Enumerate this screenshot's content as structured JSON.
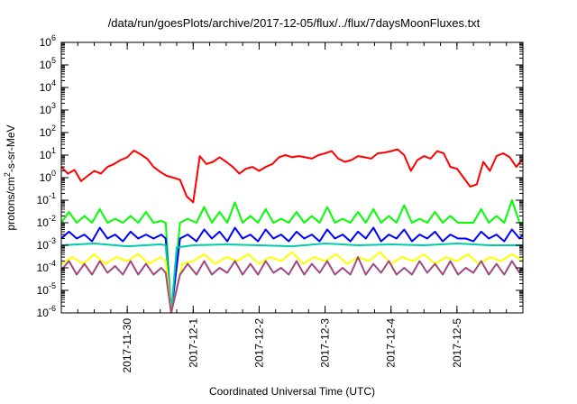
{
  "chart_data": {
    "type": "line",
    "title": "/data/run/goesPlots/archive/2017-12-05/flux/../flux/7daysMoonFluxes.txt",
    "xlabel": "Coordinated Universal Time (UTC)",
    "ylabel": "protons/cm²-s-sr-MeV",
    "yscale": "log",
    "ylim": [
      1e-06,
      1000000.0
    ],
    "ytick_exponents": [
      "-6",
      "-5",
      "-4",
      "-3",
      "-2",
      "-1",
      "0",
      "1",
      "2",
      "3",
      "4",
      "5",
      "6"
    ],
    "ytick_base": "10",
    "xlim": [
      "2017-11-29 00:00",
      "2017-12-06 00:00"
    ],
    "xticks": [
      "2017-11-30",
      "2017-12-1",
      "2017-12-2",
      "2017-12-3",
      "2017-12-4",
      "2017-12-5"
    ],
    "grid": false,
    "legend": "none",
    "series": [
      {
        "color": "#ff0000",
        "x": [
          "2017-11-29 00:00",
          "2017-11-29 02:24",
          "2017-11-29 04:48",
          "2017-11-29 07:12",
          "2017-11-29 09:36",
          "2017-11-29 12:00",
          "2017-11-29 14:24",
          "2017-11-29 16:48",
          "2017-11-29 19:12",
          "2017-11-29 21:36",
          "2017-11-30 00:00",
          "2017-11-30 02:24",
          "2017-11-30 04:48",
          "2017-11-30 07:12",
          "2017-11-30 09:36",
          "2017-11-30 12:00",
          "2017-11-30 14:24",
          "2017-11-30 16:48",
          "2017-11-30 19:12",
          "2017-11-30 21:36",
          "2017-12-01 00:00",
          "2017-12-01 02:24",
          "2017-12-01 04:48",
          "2017-12-01 07:12",
          "2017-12-01 09:36",
          "2017-12-01 12:00",
          "2017-12-01 14:24",
          "2017-12-01 16:48",
          "2017-12-01 19:12",
          "2017-12-01 21:36",
          "2017-12-02 00:00",
          "2017-12-02 02:24",
          "2017-12-02 04:48",
          "2017-12-02 07:12",
          "2017-12-02 09:36",
          "2017-12-02 12:00",
          "2017-12-02 14:24",
          "2017-12-02 16:48",
          "2017-12-02 19:12",
          "2017-12-02 21:36",
          "2017-12-03 00:00",
          "2017-12-03 02:24",
          "2017-12-03 04:48",
          "2017-12-03 07:12",
          "2017-12-03 09:36",
          "2017-12-03 12:00",
          "2017-12-03 14:24",
          "2017-12-03 16:48",
          "2017-12-03 19:12",
          "2017-12-03 21:36",
          "2017-12-04 00:00",
          "2017-12-04 02:24",
          "2017-12-04 04:48",
          "2017-12-04 07:12",
          "2017-12-04 09:36",
          "2017-12-04 12:00",
          "2017-12-04 14:24",
          "2017-12-04 16:48",
          "2017-12-04 19:12",
          "2017-12-04 21:36",
          "2017-12-05 00:00",
          "2017-12-05 02:24",
          "2017-12-05 04:48",
          "2017-12-05 07:12",
          "2017-12-05 09:36",
          "2017-12-05 12:00",
          "2017-12-05 14:24",
          "2017-12-05 16:48",
          "2017-12-05 19:12",
          "2017-12-05 21:36",
          "2017-12-06 00:00"
        ],
        "values": [
          3,
          1.5,
          2.2,
          0.7,
          1.2,
          2,
          1.5,
          3,
          4,
          6,
          8,
          16,
          11,
          7,
          3,
          1.8,
          1.2,
          1,
          0.8,
          0.15,
          0.08,
          9,
          4,
          5,
          8,
          5,
          3,
          1.5,
          2.5,
          3,
          2,
          3,
          4,
          8,
          10,
          8,
          9,
          8,
          7,
          10,
          12,
          15,
          7,
          5,
          6,
          9,
          8,
          7,
          12,
          13,
          15,
          18,
          10,
          2,
          6,
          9,
          7,
          15,
          12,
          3,
          2.5,
          1,
          0.4,
          0.5,
          5,
          2,
          9,
          12,
          8,
          3,
          7
        ]
      },
      {
        "color": "#00ff00",
        "x": [
          "2017-11-29 00:00",
          "2017-11-29 02:48",
          "2017-11-29 05:36",
          "2017-11-29 08:24",
          "2017-11-29 11:12",
          "2017-11-29 14:00",
          "2017-11-29 16:48",
          "2017-11-29 19:36",
          "2017-11-29 22:24",
          "2017-11-30 01:12",
          "2017-11-30 04:00",
          "2017-11-30 06:48",
          "2017-11-30 09:36",
          "2017-11-30 12:24",
          "2017-11-30 14:00",
          "2017-11-30 16:00",
          "2017-11-30 19:12",
          "2017-11-30 22:00",
          "2017-12-01 01:12",
          "2017-12-01 04:00",
          "2017-12-01 06:48",
          "2017-12-01 09:36",
          "2017-12-01 12:24",
          "2017-12-01 15:12",
          "2017-12-01 18:00",
          "2017-12-01 20:48",
          "2017-12-01 23:36",
          "2017-12-02 02:24",
          "2017-12-02 05:12",
          "2017-12-02 08:00",
          "2017-12-02 10:48",
          "2017-12-02 13:36",
          "2017-12-02 16:24",
          "2017-12-02 19:12",
          "2017-12-02 22:00",
          "2017-12-03 00:48",
          "2017-12-03 03:36",
          "2017-12-03 06:24",
          "2017-12-03 09:12",
          "2017-12-03 12:00",
          "2017-12-03 14:48",
          "2017-12-03 17:36",
          "2017-12-03 20:24",
          "2017-12-03 23:12",
          "2017-12-04 02:00",
          "2017-12-04 04:48",
          "2017-12-04 07:36",
          "2017-12-04 10:24",
          "2017-12-04 13:12",
          "2017-12-04 16:00",
          "2017-12-04 18:48",
          "2017-12-04 21:36",
          "2017-12-05 00:24",
          "2017-12-05 03:12",
          "2017-12-05 06:00",
          "2017-12-05 08:48",
          "2017-12-05 11:36",
          "2017-12-05 14:24",
          "2017-12-05 17:12",
          "2017-12-05 20:00",
          "2017-12-05 22:48",
          "2017-12-06 00:00"
        ],
        "values": [
          0.01,
          0.03,
          0.01,
          0.02,
          0.01,
          0.04,
          0.01,
          0.015,
          0.01,
          0.02,
          0.01,
          0.03,
          0.01,
          0.012,
          0.01,
          1e-06,
          0.01,
          0.015,
          0.01,
          0.05,
          0.01,
          0.03,
          0.01,
          0.08,
          0.01,
          0.02,
          0.01,
          0.04,
          0.01,
          0.015,
          0.01,
          0.03,
          0.01,
          0.02,
          0.01,
          0.05,
          0.01,
          0.015,
          0.01,
          0.03,
          0.01,
          0.04,
          0.01,
          0.02,
          0.01,
          0.06,
          0.01,
          0.015,
          0.01,
          0.03,
          0.01,
          0.02,
          0.01,
          0.01,
          0.01,
          0.04,
          0.01,
          0.02,
          0.01,
          0.1,
          0.01,
          0.01
        ]
      },
      {
        "color": "#0000ff",
        "x": [
          "2017-11-29 00:00",
          "2017-11-29 02:48",
          "2017-11-29 05:36",
          "2017-11-29 08:24",
          "2017-11-29 11:12",
          "2017-11-29 14:00",
          "2017-11-29 16:48",
          "2017-11-29 19:36",
          "2017-11-29 22:24",
          "2017-11-30 01:12",
          "2017-11-30 04:00",
          "2017-11-30 06:48",
          "2017-11-30 09:36",
          "2017-11-30 12:24",
          "2017-11-30 14:00",
          "2017-11-30 16:00",
          "2017-11-30 19:12",
          "2017-11-30 22:00",
          "2017-12-01 01:12",
          "2017-12-01 04:00",
          "2017-12-01 06:48",
          "2017-12-01 09:36",
          "2017-12-01 12:24",
          "2017-12-01 15:12",
          "2017-12-01 18:00",
          "2017-12-01 20:48",
          "2017-12-01 23:36",
          "2017-12-02 02:24",
          "2017-12-02 05:12",
          "2017-12-02 08:00",
          "2017-12-02 10:48",
          "2017-12-02 13:36",
          "2017-12-02 16:24",
          "2017-12-02 19:12",
          "2017-12-02 22:00",
          "2017-12-03 00:48",
          "2017-12-03 03:36",
          "2017-12-03 06:24",
          "2017-12-03 09:12",
          "2017-12-03 12:00",
          "2017-12-03 14:48",
          "2017-12-03 17:36",
          "2017-12-03 20:24",
          "2017-12-03 23:12",
          "2017-12-04 02:00",
          "2017-12-04 04:48",
          "2017-12-04 07:36",
          "2017-12-04 10:24",
          "2017-12-04 13:12",
          "2017-12-04 16:00",
          "2017-12-04 18:48",
          "2017-12-04 21:36",
          "2017-12-05 00:24",
          "2017-12-05 03:12",
          "2017-12-05 06:00",
          "2017-12-05 08:48",
          "2017-12-05 11:36",
          "2017-12-05 14:24",
          "2017-12-05 17:12",
          "2017-12-05 20:00",
          "2017-12-05 22:48",
          "2017-12-06 00:00"
        ],
        "values": [
          0.002,
          0.004,
          0.002,
          0.003,
          0.0015,
          0.006,
          0.002,
          0.003,
          0.0015,
          0.004,
          0.002,
          0.003,
          0.002,
          0.003,
          0.002,
          1e-06,
          0.002,
          0.003,
          0.0015,
          0.005,
          0.002,
          0.004,
          0.0015,
          0.006,
          0.002,
          0.003,
          0.0015,
          0.005,
          0.002,
          0.003,
          0.0015,
          0.004,
          0.002,
          0.003,
          0.0015,
          0.005,
          0.002,
          0.003,
          0.0015,
          0.004,
          0.002,
          0.006,
          0.0015,
          0.003,
          0.002,
          0.005,
          0.0015,
          0.003,
          0.002,
          0.004,
          0.0015,
          0.003,
          0.002,
          0.002,
          0.0015,
          0.004,
          0.002,
          0.003,
          0.0015,
          0.005,
          0.002,
          0.003
        ]
      },
      {
        "color": "#00ccaa",
        "x": [
          "2017-11-29 00:00",
          "2017-11-29 12:00",
          "2017-11-30 00:00",
          "2017-11-30 12:00",
          "2017-11-30 14:00",
          "2017-11-30 16:00",
          "2017-11-30 18:00",
          "2017-12-01 00:00",
          "2017-12-01 12:00",
          "2017-12-02 00:00",
          "2017-12-02 12:00",
          "2017-12-03 00:00",
          "2017-12-03 12:00",
          "2017-12-04 00:00",
          "2017-12-04 12:00",
          "2017-12-05 00:00",
          "2017-12-05 12:00",
          "2017-12-06 00:00"
        ],
        "values": [
          0.001,
          0.0012,
          0.0009,
          0.0011,
          0.001,
          1e-06,
          0.0008,
          0.001,
          0.0011,
          0.001,
          0.0009,
          0.0012,
          0.001,
          0.0011,
          0.001,
          0.0012,
          0.001,
          0.001
        ]
      },
      {
        "color": "#ffff00",
        "x": [
          "2017-11-29 00:00",
          "2017-11-29 04:00",
          "2017-11-29 08:00",
          "2017-11-29 12:00",
          "2017-11-29 16:00",
          "2017-11-29 20:00",
          "2017-11-30 00:00",
          "2017-11-30 04:00",
          "2017-11-30 08:00",
          "2017-11-30 12:00",
          "2017-11-30 14:00",
          "2017-11-30 16:00",
          "2017-11-30 20:00",
          "2017-12-01 00:00",
          "2017-12-01 04:00",
          "2017-12-01 08:00",
          "2017-12-01 12:00",
          "2017-12-01 16:00",
          "2017-12-01 20:00",
          "2017-12-02 00:00",
          "2017-12-02 04:00",
          "2017-12-02 08:00",
          "2017-12-02 12:00",
          "2017-12-02 16:00",
          "2017-12-02 20:00",
          "2017-12-03 00:00",
          "2017-12-03 04:00",
          "2017-12-03 08:00",
          "2017-12-03 12:00",
          "2017-12-03 16:00",
          "2017-12-03 20:00",
          "2017-12-04 00:00",
          "2017-12-04 04:00",
          "2017-12-04 08:00",
          "2017-12-04 12:00",
          "2017-12-04 16:00",
          "2017-12-04 20:00",
          "2017-12-05 00:00",
          "2017-12-05 04:00",
          "2017-12-05 08:00",
          "2017-12-05 12:00",
          "2017-12-05 16:00",
          "2017-12-05 20:00",
          "2017-12-06 00:00"
        ],
        "values": [
          0.00015,
          0.0003,
          0.00015,
          0.0004,
          0.00015,
          0.0003,
          0.0002,
          0.0004,
          0.00015,
          0.0003,
          0.0002,
          1e-06,
          0.00015,
          0.0002,
          0.0004,
          0.00015,
          0.0003,
          0.0002,
          0.0004,
          0.00015,
          0.0003,
          0.0002,
          0.0005,
          0.00015,
          0.0003,
          0.0002,
          0.0004,
          0.00015,
          0.0003,
          0.0002,
          0.0005,
          0.00015,
          0.0003,
          0.0002,
          0.0004,
          0.00015,
          0.0003,
          0.0002,
          0.0004,
          0.00015,
          0.0003,
          0.0002,
          0.0004,
          0.0002
        ]
      },
      {
        "color": "#a04880",
        "x": [
          "2017-11-29 00:00",
          "2017-11-29 02:48",
          "2017-11-29 05:36",
          "2017-11-29 08:24",
          "2017-11-29 11:12",
          "2017-11-29 14:00",
          "2017-11-29 16:48",
          "2017-11-29 19:36",
          "2017-11-29 22:24",
          "2017-11-30 01:12",
          "2017-11-30 04:00",
          "2017-11-30 06:48",
          "2017-11-30 09:36",
          "2017-11-30 12:24",
          "2017-11-30 14:00",
          "2017-11-30 16:00",
          "2017-11-30 19:12",
          "2017-11-30 22:00",
          "2017-12-01 01:12",
          "2017-12-01 04:00",
          "2017-12-01 06:48",
          "2017-12-01 09:36",
          "2017-12-01 12:24",
          "2017-12-01 15:12",
          "2017-12-01 18:00",
          "2017-12-01 20:48",
          "2017-12-01 23:36",
          "2017-12-02 02:24",
          "2017-12-02 05:12",
          "2017-12-02 08:00",
          "2017-12-02 10:48",
          "2017-12-02 13:36",
          "2017-12-02 16:24",
          "2017-12-02 19:12",
          "2017-12-02 22:00",
          "2017-12-03 00:48",
          "2017-12-03 03:36",
          "2017-12-03 06:24",
          "2017-12-03 09:12",
          "2017-12-03 12:00",
          "2017-12-03 14:48",
          "2017-12-03 17:36",
          "2017-12-03 20:24",
          "2017-12-03 23:12",
          "2017-12-04 02:00",
          "2017-12-04 04:48",
          "2017-12-04 07:36",
          "2017-12-04 10:24",
          "2017-12-04 13:12",
          "2017-12-04 16:00",
          "2017-12-04 18:48",
          "2017-12-04 21:36",
          "2017-12-05 00:24",
          "2017-12-05 03:12",
          "2017-12-05 06:00",
          "2017-12-05 08:48",
          "2017-12-05 11:36",
          "2017-12-05 14:24",
          "2017-12-05 17:12",
          "2017-12-05 20:00",
          "2017-12-05 22:48",
          "2017-12-06 00:00"
        ],
        "values": [
          8e-05,
          0.0002,
          5e-05,
          0.00015,
          5e-05,
          0.0002,
          6e-05,
          0.00012,
          5e-05,
          0.0002,
          5e-05,
          0.00015,
          5e-05,
          0.0001,
          6e-05,
          1e-06,
          5e-05,
          0.00015,
          5e-05,
          0.0002,
          5e-05,
          0.0001,
          6e-05,
          0.0002,
          5e-05,
          0.00015,
          5e-05,
          0.0002,
          6e-05,
          0.0001,
          5e-05,
          0.0002,
          5e-05,
          0.00015,
          6e-05,
          0.0002,
          5e-05,
          0.0001,
          5e-05,
          0.0003,
          5e-05,
          0.00015,
          6e-05,
          0.0002,
          5e-05,
          0.0001,
          5e-05,
          0.0002,
          6e-05,
          0.00015,
          5e-05,
          0.0002,
          5e-05,
          0.0001,
          6e-05,
          0.0002,
          5e-05,
          0.00015,
          5e-05,
          0.0002,
          6e-05,
          0.0001
        ]
      }
    ]
  }
}
